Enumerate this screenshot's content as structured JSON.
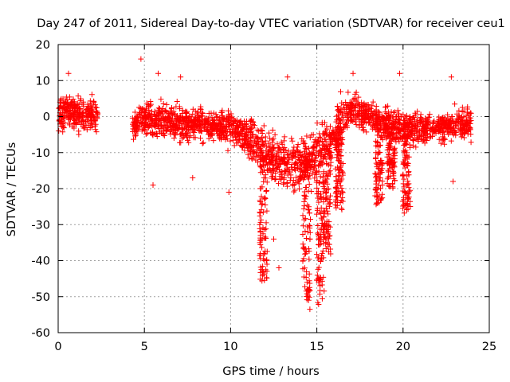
{
  "chart_data": {
    "type": "scatter",
    "title": "Day 247 of 2011, Sidereal Day-to-day VTEC variation (SDTVAR) for receiver ceu1",
    "xlabel": "GPS time / hours",
    "ylabel": "SDTVAR / TECUs",
    "xlim": [
      0,
      25
    ],
    "ylim": [
      -60,
      20
    ],
    "xticks": [
      0,
      5,
      10,
      15,
      20,
      25
    ],
    "yticks": [
      -60,
      -50,
      -40,
      -30,
      -20,
      -10,
      0,
      10,
      20
    ],
    "xtick_labels": [
      "0",
      "5",
      "10",
      "15",
      "20",
      "25"
    ],
    "ytick_labels": [
      "-60",
      "-50",
      "-40",
      "-30",
      "-20",
      "-10",
      "0",
      "10",
      "20"
    ],
    "grid": true,
    "marker": "+",
    "color": "#ff0000",
    "series": [
      {
        "name": "SDTVAR",
        "approximate_profile": {
          "x": [
            0.0,
            0.5,
            1.0,
            1.5,
            2.0,
            2.3,
            4.3,
            4.6,
            5.0,
            6.0,
            7.0,
            8.0,
            9.0,
            10.0,
            10.5,
            11.0,
            11.5,
            12.0,
            12.5,
            13.0,
            13.5,
            14.0,
            14.5,
            15.0,
            15.5,
            16.0,
            16.5,
            17.0,
            17.5,
            18.0,
            18.5,
            19.0,
            19.5,
            20.0,
            20.5,
            21.0,
            22.0,
            23.0,
            23.9
          ],
          "y": [
            0.5,
            1.5,
            1.0,
            0.5,
            0.5,
            1.0,
            -2.0,
            -2.0,
            -1.0,
            -1.0,
            -2.0,
            -2.0,
            -2.0,
            -3.0,
            -4.0,
            -6.0,
            -8.0,
            -10.0,
            -12.0,
            -13.0,
            -13.0,
            -14.0,
            -12.0,
            -10.0,
            -8.0,
            -5.0,
            -1.0,
            2.0,
            1.0,
            0.0,
            -1.0,
            -2.0,
            -3.0,
            -2.5,
            -3.0,
            -3.0,
            -3.0,
            -2.5,
            -2.0
          ]
        },
        "dips": [
          {
            "x": 11.9,
            "min_y": -45
          },
          {
            "x": 14.4,
            "min_y": -54
          },
          {
            "x": 15.2,
            "min_y": -52
          },
          {
            "x": 15.6,
            "min_y": -38
          },
          {
            "x": 16.3,
            "min_y": -25
          },
          {
            "x": 18.6,
            "min_y": -24
          },
          {
            "x": 19.3,
            "min_y": -20
          },
          {
            "x": 20.2,
            "min_y": -26
          }
        ],
        "gaps": [
          [
            2.3,
            4.3
          ]
        ],
        "outliers": [
          {
            "x": 4.8,
            "y": 16
          },
          {
            "x": 0.6,
            "y": 12
          },
          {
            "x": 5.8,
            "y": 12
          },
          {
            "x": 7.1,
            "y": 11
          },
          {
            "x": 13.3,
            "y": 11
          },
          {
            "x": 17.1,
            "y": 12
          },
          {
            "x": 19.8,
            "y": 12
          },
          {
            "x": 22.8,
            "y": 11
          },
          {
            "x": 5.5,
            "y": -19
          },
          {
            "x": 7.8,
            "y": -17
          },
          {
            "x": 9.9,
            "y": -21
          },
          {
            "x": 12.5,
            "y": -34
          },
          {
            "x": 12.8,
            "y": -42
          },
          {
            "x": 22.9,
            "y": -18
          }
        ]
      }
    ]
  }
}
